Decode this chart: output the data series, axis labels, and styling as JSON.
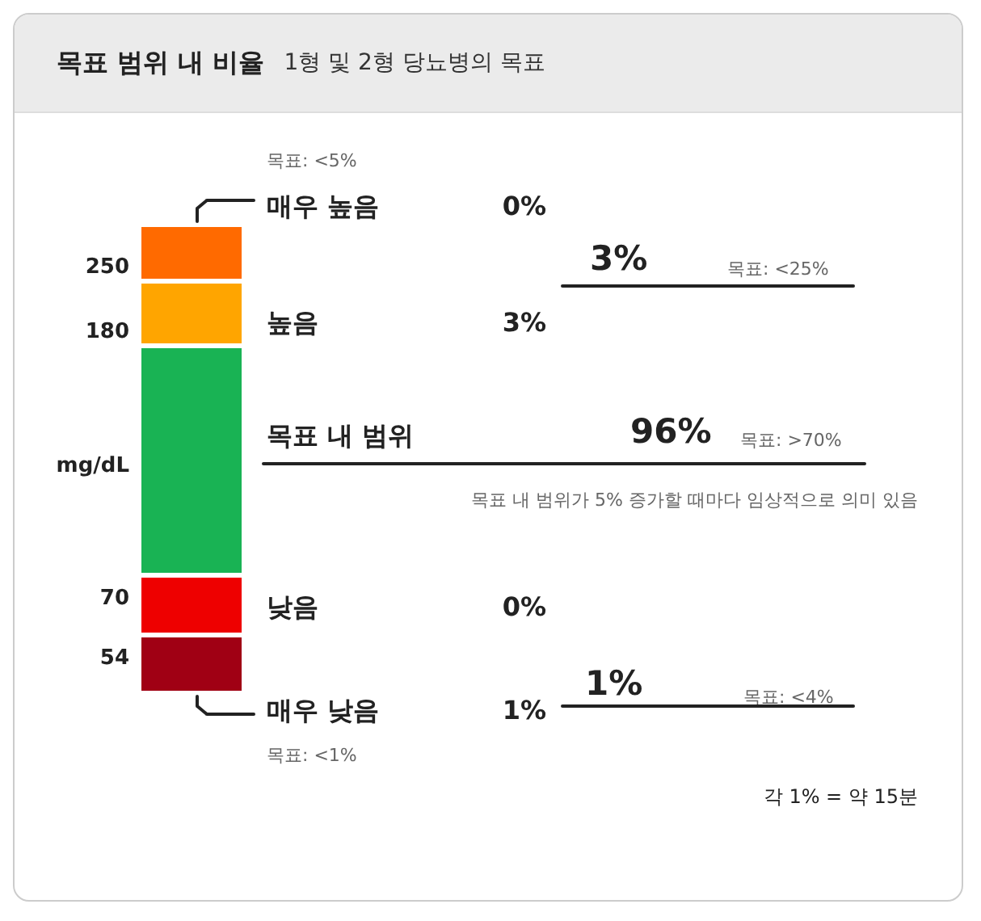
{
  "chart_data": {
    "type": "other",
    "title": "목표 범위 내 비율",
    "subtitle": "1형 및 2형 당뇨병의 목표",
    "ylabel": "mg/dL",
    "categories": [
      "매우 높음",
      "높음",
      "목표 내 범위",
      "낮음",
      "매우 낮음"
    ],
    "values": [
      0,
      3,
      96,
      0,
      1
    ],
    "value_labels": [
      "0%",
      "3%",
      "96%",
      "0%",
      "1%"
    ],
    "colors": [
      "#ff6a00",
      "#ffa500",
      "#19b354",
      "#ee0000",
      "#a00014"
    ],
    "annotations": [
      "목표: <5%",
      "3%",
      "목표: <25%",
      "목표: >70%",
      "목표 내 범위가 5% 증가할 때마다 임상적으로 의미 있음",
      "1%",
      "목표: <4%",
      "목표: <1%",
      "각 1% = 약 15분",
      "250",
      "180",
      "70",
      "54"
    ]
  }
}
